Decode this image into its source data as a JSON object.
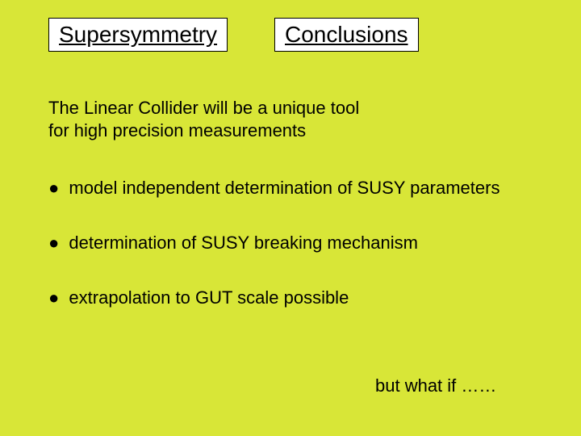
{
  "slide": {
    "background_color": "#d8e637",
    "title_left": "Supersymmetry",
    "title_right": "Conclusions",
    "intro_line1": "The Linear Collider will be a unique tool",
    "intro_line2": "for high precision measurements",
    "bullets": [
      "model independent determination of SUSY parameters",
      "determination of SUSY breaking mechanism",
      "extrapolation to GUT scale possible"
    ],
    "footer": "but what if ……",
    "bullet_symbol": "●",
    "font_family": "Arial",
    "title_fontsize": 28,
    "body_fontsize": 22,
    "title_box_bg": "#ffffff",
    "title_box_border": "#000000",
    "text_color": "#000000"
  }
}
